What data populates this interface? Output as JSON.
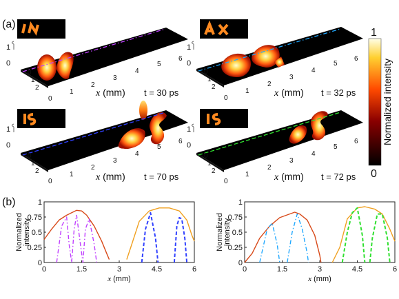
{
  "figure": {
    "panel_a_label": "(a)",
    "panel_b_label": "(b)",
    "colorbar": {
      "label": "Normalized intensity",
      "max": "1",
      "min": "0"
    },
    "surface_plots": [
      {
        "time": "t = 30 ps",
        "xlabel_var": "x",
        "xlabel_unit": " (mm)",
        "line_color": "#c040ff",
        "line_style": "dashdot",
        "inset": "In"
      },
      {
        "time": "t = 32 ps",
        "xlabel_var": "x",
        "xlabel_unit": " (mm)",
        "line_color": "#20a8ff",
        "line_style": "dashdot",
        "inset": "AX"
      },
      {
        "time": "t = 70 ps",
        "xlabel_var": "x",
        "xlabel_unit": " (mm)",
        "line_color": "#3040ff",
        "line_style": "dash",
        "inset": "IS"
      },
      {
        "time": "t = 72 ps",
        "xlabel_var": "x",
        "xlabel_unit": " (mm)",
        "line_color": "#30e030",
        "line_style": "dash",
        "inset": "IS"
      }
    ],
    "surface_x_ticks": [
      "0",
      "1",
      "2",
      "3",
      "4",
      "5",
      "6"
    ],
    "surface_y_ticks": [
      "0",
      "1",
      "2"
    ],
    "surface_z_ticks": [
      "0",
      "1"
    ]
  },
  "chart_data": [
    {
      "type": "line",
      "ylabel": "Normalized intensity",
      "xlabel_var": "x",
      "xlabel_unit": " (mm)",
      "xlim": [
        0,
        6
      ],
      "ylim": [
        0,
        1
      ],
      "x_ticks": [
        "0",
        "1.5",
        "3",
        "4.5",
        "6"
      ],
      "y_ticks": [
        "0",
        "0.25",
        "0.5",
        "0.75",
        "1"
      ],
      "series": [
        {
          "color": "#d84a1a",
          "style": "solid",
          "points": [
            [
              0,
              0.38
            ],
            [
              0.3,
              0.55
            ],
            [
              0.6,
              0.7
            ],
            [
              0.9,
              0.78
            ],
            [
              1.1,
              0.82
            ],
            [
              1.3,
              0.86
            ],
            [
              1.5,
              0.85
            ],
            [
              1.7,
              0.78
            ],
            [
              2.0,
              0.6
            ],
            [
              2.3,
              0.35
            ],
            [
              2.5,
              0.15
            ],
            [
              2.6,
              0.05
            ]
          ]
        },
        {
          "color": "#f0a020",
          "style": "solid",
          "points": [
            [
              3.3,
              0.05
            ],
            [
              3.5,
              0.3
            ],
            [
              3.8,
              0.68
            ],
            [
              4.2,
              0.85
            ],
            [
              4.6,
              0.9
            ],
            [
              5.0,
              0.9
            ],
            [
              5.4,
              0.85
            ],
            [
              5.7,
              0.7
            ],
            [
              5.9,
              0.45
            ],
            [
              6.0,
              0.35
            ]
          ]
        },
        {
          "color": "#c040ff",
          "style": "dashdot",
          "points": [
            [
              0.5,
              0
            ],
            [
              0.7,
              0.6
            ],
            [
              0.9,
              0.75
            ],
            [
              1.0,
              0.3
            ],
            [
              1.1,
              0
            ],
            [
              1.2,
              0.55
            ],
            [
              1.3,
              0.78
            ],
            [
              1.45,
              0.3
            ],
            [
              1.55,
              0
            ],
            [
              1.65,
              0.55
            ],
            [
              1.8,
              0.72
            ],
            [
              2.0,
              0.3
            ],
            [
              2.1,
              0
            ]
          ]
        },
        {
          "color": "#3040ff",
          "style": "dash",
          "points": [
            [
              3.9,
              0
            ],
            [
              4.05,
              0.55
            ],
            [
              4.25,
              0.82
            ],
            [
              4.45,
              0.4
            ],
            [
              4.55,
              0
            ]
          ]
        },
        {
          "color": "#3040ff",
          "style": "dash",
          "points": [
            [
              5.2,
              0
            ],
            [
              5.3,
              0.6
            ],
            [
              5.4,
              0.74
            ],
            [
              5.5,
              0.72
            ],
            [
              5.62,
              0.4
            ],
            [
              5.7,
              0
            ]
          ]
        }
      ]
    },
    {
      "type": "line",
      "ylabel": "Normalized intensity",
      "xlabel_var": "x",
      "xlabel_unit": " (mm)",
      "xlim": [
        0,
        6
      ],
      "ylim": [
        0,
        1
      ],
      "x_ticks": [
        "0",
        "1.5",
        "3",
        "4.5",
        "6"
      ],
      "y_ticks": [
        "0",
        "0.25",
        "0.5",
        "0.75",
        "1"
      ],
      "series": [
        {
          "color": "#d84a1a",
          "style": "solid",
          "points": [
            [
              0,
              0
            ],
            [
              0.3,
              0.15
            ],
            [
              0.6,
              0.4
            ],
            [
              1.0,
              0.6
            ],
            [
              1.4,
              0.74
            ],
            [
              1.8,
              0.8
            ],
            [
              2.0,
              0.83
            ],
            [
              2.2,
              0.8
            ],
            [
              2.5,
              0.7
            ],
            [
              2.8,
              0.45
            ],
            [
              3.0,
              0.12
            ],
            [
              3.05,
              0
            ]
          ]
        },
        {
          "color": "#f0a020",
          "style": "solid",
          "points": [
            [
              3.5,
              0
            ],
            [
              3.8,
              0.25
            ],
            [
              4.1,
              0.72
            ],
            [
              4.5,
              0.9
            ],
            [
              4.8,
              0.92
            ],
            [
              5.2,
              0.88
            ],
            [
              5.5,
              0.8
            ],
            [
              5.8,
              0.55
            ],
            [
              6.0,
              0.35
            ]
          ]
        },
        {
          "color": "#20a8ff",
          "style": "dashdot",
          "points": [
            [
              0.6,
              0
            ],
            [
              0.9,
              0.55
            ],
            [
              1.1,
              0.65
            ],
            [
              1.3,
              0.3
            ],
            [
              1.4,
              0
            ]
          ]
        },
        {
          "color": "#20a8ff",
          "style": "dashdot",
          "points": [
            [
              1.7,
              0
            ],
            [
              1.9,
              0.5
            ],
            [
              2.1,
              0.8
            ],
            [
              2.3,
              0.55
            ],
            [
              2.5,
              0.15
            ],
            [
              2.55,
              0
            ]
          ]
        },
        {
          "color": "#30e030",
          "style": "dash",
          "points": [
            [
              3.9,
              0
            ],
            [
              4.1,
              0.5
            ],
            [
              4.3,
              0.82
            ],
            [
              4.5,
              0.9
            ],
            [
              4.7,
              0.45
            ],
            [
              4.8,
              0
            ]
          ]
        },
        {
          "color": "#30e030",
          "style": "dash",
          "points": [
            [
              5.0,
              0
            ],
            [
              5.1,
              0.4
            ],
            [
              5.3,
              0.8
            ],
            [
              5.5,
              0.8
            ],
            [
              5.7,
              0.4
            ],
            [
              5.8,
              0
            ]
          ]
        }
      ]
    }
  ]
}
